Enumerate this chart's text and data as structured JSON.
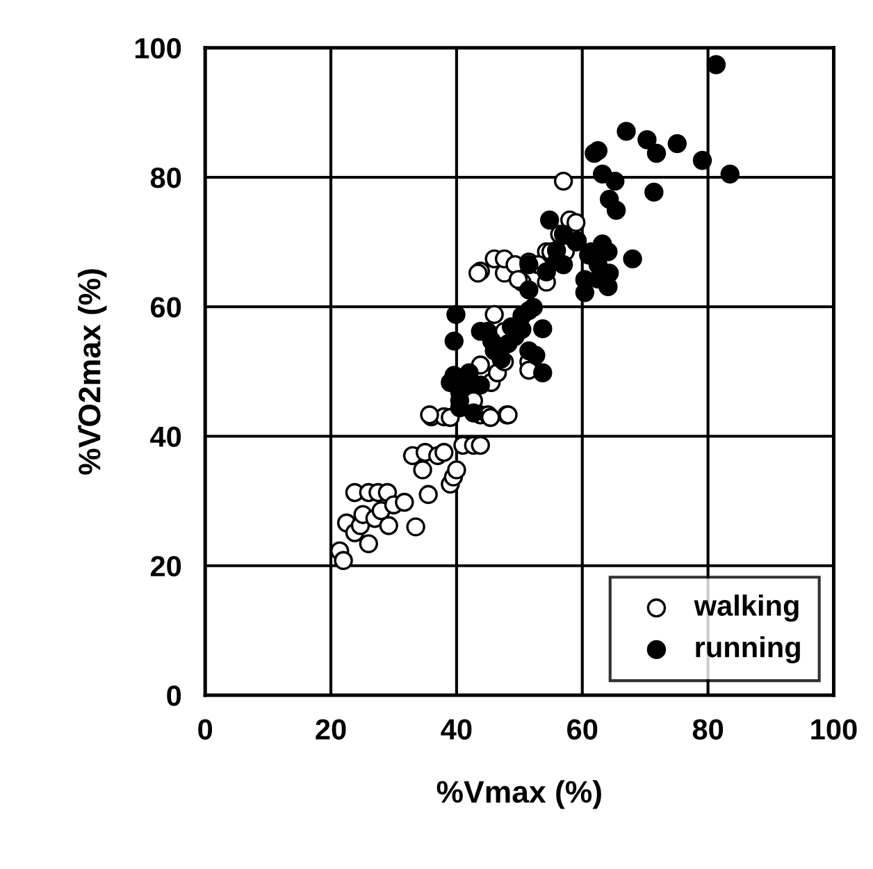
{
  "chart_data": {
    "type": "scatter",
    "xlabel": "%Vmax (%)",
    "ylabel": "%V̇O2max (%)",
    "xlim": [
      0,
      100
    ],
    "ylim": [
      0,
      100
    ],
    "xticks": [
      0,
      20,
      40,
      60,
      80,
      100
    ],
    "yticks": [
      0,
      20,
      40,
      60,
      80,
      100
    ],
    "grid": true,
    "legend": "bottom right",
    "marker": "circle",
    "series": [
      {
        "name": "walking",
        "color": "#ffffff",
        "x": [
          21.4,
          22,
          22.5,
          23.8,
          23.8,
          24.7,
          25.1,
          26,
          26,
          27,
          27.5,
          28,
          29,
          29.2,
          30,
          31.7,
          33,
          33.5,
          34.6,
          35,
          35.5,
          36,
          37,
          38,
          39,
          39.5,
          40,
          41,
          42.7,
          43.8,
          43.8,
          45,
          48,
          42.7,
          38,
          43.8,
          45.5,
          46.5,
          47.6,
          47.6,
          43.8,
          46,
          47.6,
          46,
          47.6,
          49.3,
          50.4,
          51.5,
          51.5,
          51.5,
          54.3,
          57,
          58,
          54.3,
          55,
          57.3,
          35.7,
          39,
          45.4,
          48.2,
          43.4,
          49.8,
          53,
          56.4,
          59
        ],
        "values": [
          22.3,
          20.8,
          26.6,
          25.1,
          31.3,
          26.2,
          27.9,
          31.3,
          23.4,
          27.3,
          31.3,
          28.5,
          31.3,
          26.2,
          29.4,
          29.8,
          37,
          26,
          34.8,
          37.5,
          31,
          43,
          37,
          37.5,
          32.6,
          33.7,
          34.8,
          38.6,
          38.6,
          38.6,
          43.3,
          43.3,
          43.3,
          45.5,
          43,
          51,
          48.3,
          49.8,
          51.5,
          65.2,
          65.5,
          58.8,
          56.2,
          67.4,
          67.4,
          66.5,
          63.8,
          66.9,
          51.5,
          50.2,
          63.8,
          79.4,
          73.4,
          68.5,
          68.5,
          68.5,
          43.3,
          42.9,
          42.9,
          43.3,
          65.2,
          64.2,
          66.5,
          71.2,
          73
        ]
      },
      {
        "name": "running",
        "color": "#000000",
        "x": [
          39.6,
          39.6,
          40.5,
          40.5,
          41.6,
          43.8,
          42.7,
          46,
          43.8,
          48.2,
          49.3,
          50.4,
          51.5,
          52.6,
          51.5,
          51.5,
          52.2,
          51.5,
          54.3,
          55.9,
          54.8,
          57,
          59.2,
          61.4,
          62.5,
          62.5,
          64.3,
          60.4,
          64.1,
          60.4,
          64.1,
          68,
          53.7,
          53.7,
          50.4,
          62.5,
          63.2,
          65.2,
          64.3,
          65.4,
          67,
          70.3,
          71.8,
          75.1,
          79.1,
          83.5,
          61.9,
          71.4,
          81.3,
          63.2,
          57,
          55.9,
          59,
          61,
          39.9,
          44.9,
          48.7,
          39,
          42,
          47.1,
          45.6,
          40.5
        ],
        "values": [
          54.7,
          49.4,
          46.8,
          44.4,
          47.9,
          47.9,
          43.6,
          53.2,
          56.2,
          54.3,
          55.4,
          56.5,
          53.2,
          52.5,
          59.4,
          62.6,
          59.9,
          66.5,
          65.4,
          68.7,
          73.4,
          71.2,
          70.2,
          68.5,
          66.5,
          64.3,
          65.2,
          62.2,
          63.1,
          64.2,
          68.5,
          67.4,
          56.6,
          49.8,
          58.6,
          84.1,
          80.5,
          79.4,
          76.6,
          74.9,
          87.1,
          85.8,
          83.7,
          85.2,
          82.6,
          80.5,
          83.7,
          77.7,
          97.4,
          69.7,
          66.5,
          67,
          70,
          68,
          58.8,
          56.2,
          56.9,
          48.3,
          49.8,
          51.9,
          54.7,
          45.5
        ]
      }
    ]
  }
}
